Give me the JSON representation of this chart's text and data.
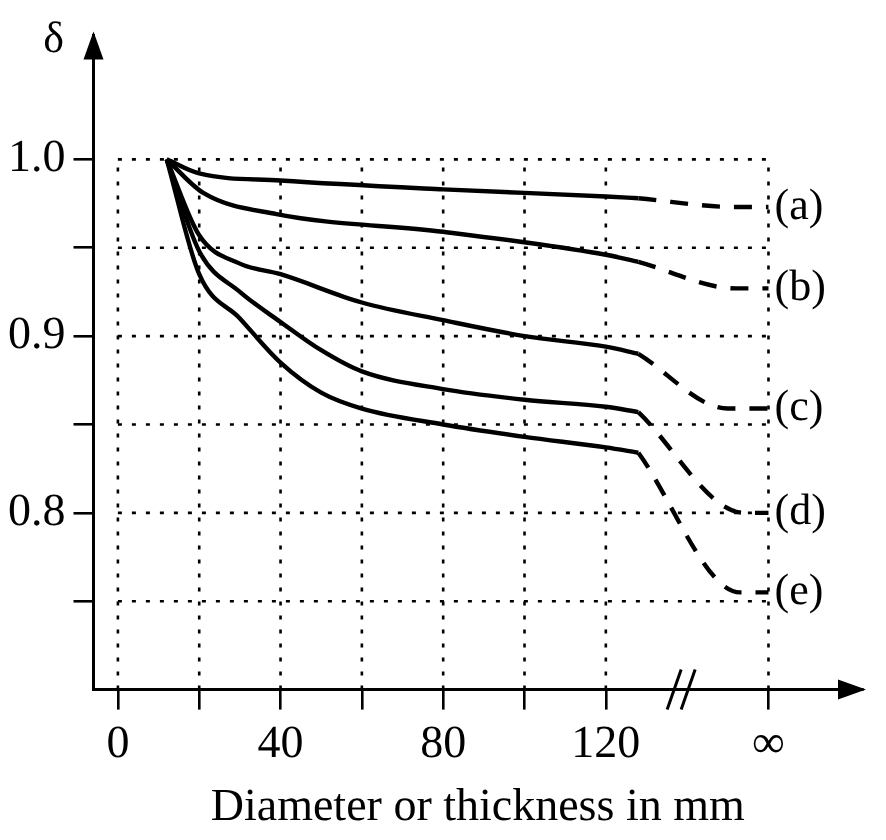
{
  "chart_data": {
    "type": "line",
    "xlabel": "Diameter or thickness in mm",
    "ylabel": "δ",
    "xlim": [
      -6,
      183
    ],
    "ylim": [
      0.7,
      1.07
    ],
    "xticks": [
      0,
      {
        "value": 20,
        "label": null
      },
      40,
      {
        "value": 60,
        "label": null
      },
      80,
      {
        "value": 100,
        "label": null
      },
      120,
      {
        "value": 160,
        "label": "∞"
      }
    ],
    "yticks": [
      {
        "value": 0.75,
        "label": null
      },
      0.8,
      {
        "value": 0.85,
        "label": null
      },
      0.9,
      {
        "value": 0.95,
        "label": null
      },
      {
        "value": 1.0,
        "label": "1.0"
      }
    ],
    "grid": true,
    "marker": "none",
    "series": [
      {
        "color": "#000000",
        "line_style": "solid",
        "x": [
          12,
          20,
          40,
          80,
          120,
          128
        ],
        "values": [
          1.0,
          0.992,
          0.988,
          0.983,
          0.979,
          0.978
        ]
      },
      {
        "name": "(a)",
        "color": "#000000",
        "line_style": "dashed",
        "x": [
          128,
          152,
          160
        ],
        "values": [
          0.978,
          0.973,
          0.973
        ]
      },
      {
        "color": "#000000",
        "line_style": "solid",
        "x": [
          12,
          21,
          39,
          80,
          120,
          128
        ],
        "values": [
          1.0,
          0.981,
          0.969,
          0.959,
          0.946,
          0.942
        ]
      },
      {
        "name": "(b)",
        "color": "#000000",
        "line_style": "dashed",
        "x": [
          128,
          152,
          160
        ],
        "values": [
          0.942,
          0.927,
          0.927
        ]
      },
      {
        "color": "#000000",
        "line_style": "solid",
        "x": [
          12,
          20,
          30,
          40,
          60,
          80,
          100,
          120,
          128
        ],
        "values": [
          1.0,
          0.957,
          0.941,
          0.935,
          0.919,
          0.909,
          0.9,
          0.894,
          0.89
        ]
      },
      {
        "name": "(c)",
        "color": "#000000",
        "line_style": "dashed",
        "x": [
          128,
          150,
          160
        ],
        "values": [
          0.89,
          0.859,
          0.859
        ]
      },
      {
        "color": "#000000",
        "line_style": "solid",
        "x": [
          12,
          20,
          30,
          40,
          50,
          60,
          80,
          100,
          120,
          128
        ],
        "values": [
          1.0,
          0.948,
          0.925,
          0.908,
          0.892,
          0.88,
          0.87,
          0.864,
          0.86,
          0.857
        ]
      },
      {
        "name": "(d)",
        "color": "#000000",
        "line_style": "dashed",
        "x": [
          128,
          154,
          160
        ],
        "values": [
          0.857,
          0.8,
          0.8
        ]
      },
      {
        "color": "#000000",
        "line_style": "solid",
        "x": [
          12,
          20,
          30,
          40,
          50,
          60,
          80,
          100,
          120,
          128
        ],
        "values": [
          1.0,
          0.935,
          0.91,
          0.885,
          0.868,
          0.859,
          0.85,
          0.843,
          0.837,
          0.834
        ]
      },
      {
        "name": "(e)",
        "color": "#000000",
        "line_style": "dashed",
        "x": [
          128,
          153,
          160
        ],
        "values": [
          0.834,
          0.755,
          0.755
        ]
      }
    ]
  }
}
